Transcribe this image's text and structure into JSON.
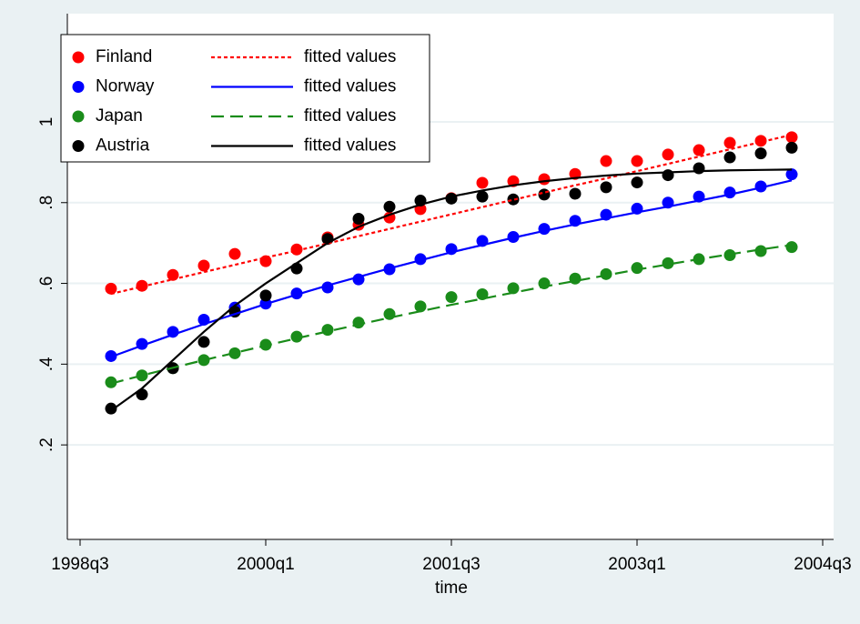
{
  "chart_data": {
    "type": "scatter",
    "x_label": "time",
    "categories": [
      "1998q3",
      null,
      null,
      null,
      null,
      null,
      "2000q1",
      null,
      null,
      null,
      null,
      null,
      "2001q3",
      null,
      null,
      null,
      null,
      null,
      "2003q1",
      null,
      null,
      null,
      null,
      null,
      "2004q3"
    ],
    "ylim": [
      -0.034,
      1.268
    ],
    "yticks": [
      {
        "value": 0.2,
        "label": ".2"
      },
      {
        "value": 0.4,
        "label": ".4"
      },
      {
        "value": 0.6,
        "label": ".6"
      },
      {
        "value": 0.8,
        "label": ".8"
      },
      1
    ],
    "grid": true,
    "legend": "top-left",
    "series": [
      {
        "name": "Finland",
        "color": "#ff0000",
        "mode": "markers",
        "values": [
          null,
          0.587,
          0.594,
          0.621,
          0.644,
          0.673,
          0.655,
          0.684,
          0.714,
          0.745,
          0.763,
          0.784,
          0.811,
          0.849,
          0.853,
          0.858,
          0.871,
          0.903,
          0.903,
          0.919,
          0.93,
          0.948,
          0.953,
          0.962,
          null
        ]
      },
      {
        "name": "Norway",
        "color": "#0000ff",
        "mode": "markers",
        "values": [
          null,
          0.42,
          0.45,
          0.48,
          0.51,
          0.54,
          0.55,
          0.575,
          0.59,
          0.61,
          0.635,
          0.66,
          0.685,
          0.705,
          0.715,
          0.735,
          0.755,
          0.77,
          0.785,
          0.8,
          0.815,
          0.825,
          0.84,
          0.87,
          null
        ]
      },
      {
        "name": "Japan",
        "color": "#1a8c1a",
        "mode": "markers",
        "values": [
          null,
          0.355,
          0.372,
          0.39,
          0.41,
          0.427,
          0.448,
          0.468,
          0.485,
          0.503,
          0.524,
          0.543,
          0.566,
          0.573,
          0.588,
          0.6,
          0.612,
          0.623,
          0.638,
          0.65,
          0.66,
          0.67,
          0.68,
          0.69,
          null
        ]
      },
      {
        "name": "Austria",
        "color": "#000000",
        "mode": "markers",
        "values": [
          null,
          0.29,
          0.325,
          0.39,
          0.455,
          0.53,
          0.57,
          0.637,
          0.71,
          0.76,
          0.79,
          0.805,
          0.81,
          0.815,
          0.808,
          0.82,
          0.822,
          0.838,
          0.85,
          0.868,
          0.885,
          0.912,
          0.922,
          0.936,
          null
        ]
      },
      {
        "name": "fitted values",
        "color": "#ff0000",
        "mode": "line",
        "dash": "dot",
        "values": [
          null,
          0.574,
          0.592,
          0.61,
          0.628,
          0.646,
          0.664,
          0.681,
          0.699,
          0.717,
          0.735,
          0.753,
          0.771,
          0.789,
          0.807,
          0.825,
          0.843,
          0.86,
          0.878,
          0.896,
          0.914,
          0.932,
          0.95,
          0.968,
          null
        ]
      },
      {
        "name": "fitted values",
        "color": "#0000ff",
        "mode": "line",
        "dash": "solid",
        "values": [
          null,
          0.418,
          0.446,
          0.473,
          0.499,
          0.524,
          0.549,
          0.572,
          0.595,
          0.616,
          0.637,
          0.657,
          0.677,
          0.695,
          0.713,
          0.73,
          0.746,
          0.761,
          0.776,
          0.79,
          0.805,
          0.82,
          0.837,
          0.855,
          null
        ]
      },
      {
        "name": "fitted values",
        "color": "#1a8c1a",
        "mode": "line",
        "dash": "dash",
        "values": [
          null,
          0.352,
          0.372,
          0.391,
          0.41,
          0.428,
          0.446,
          0.464,
          0.481,
          0.498,
          0.515,
          0.531,
          0.547,
          0.562,
          0.577,
          0.592,
          0.606,
          0.62,
          0.634,
          0.647,
          0.66,
          0.672,
          0.684,
          0.695,
          null
        ]
      },
      {
        "name": "fitted values",
        "color": "#000000",
        "mode": "line",
        "dash": "solid",
        "values": [
          null,
          0.285,
          0.34,
          0.41,
          0.48,
          0.545,
          0.6,
          0.65,
          0.7,
          0.74,
          0.77,
          0.795,
          0.815,
          0.83,
          0.843,
          0.853,
          0.861,
          0.867,
          0.872,
          0.875,
          0.878,
          0.88,
          0.881,
          0.882,
          null
        ]
      }
    ]
  }
}
